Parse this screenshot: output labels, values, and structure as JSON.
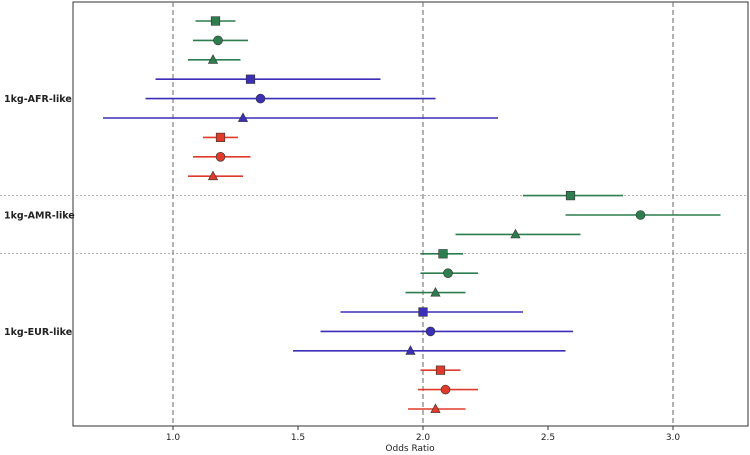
{
  "chart_data": {
    "type": "forest",
    "title": "",
    "xlabel": "Odds Ratio",
    "ylabel": "",
    "xlim": [
      0.6,
      3.3
    ],
    "xticks": [
      "1.0",
      "1.5",
      "2.0",
      "2.5",
      "3.0"
    ],
    "xtick_values": [
      1.0,
      1.5,
      2.0,
      2.5,
      3.0
    ],
    "vlines": [
      1.0,
      2.0,
      3.0
    ],
    "colors": {
      "green": "#2e7d4f",
      "blue": "#3b2fb8",
      "red": "#e03a2a"
    },
    "groups": [
      {
        "label": "1kg-AFR-like",
        "rows": [
          {
            "color": "green",
            "marker": "square",
            "or": 1.17,
            "lo": 1.09,
            "hi": 1.25
          },
          {
            "color": "green",
            "marker": "circle",
            "or": 1.18,
            "lo": 1.08,
            "hi": 1.3
          },
          {
            "color": "green",
            "marker": "triangle",
            "or": 1.16,
            "lo": 1.06,
            "hi": 1.27
          },
          {
            "color": "blue",
            "marker": "square",
            "or": 1.31,
            "lo": 0.93,
            "hi": 1.83
          },
          {
            "color": "blue",
            "marker": "circle",
            "or": 1.35,
            "lo": 0.89,
            "hi": 2.05
          },
          {
            "color": "blue",
            "marker": "triangle",
            "or": 1.28,
            "lo": 0.72,
            "hi": 2.3
          },
          {
            "color": "red",
            "marker": "square",
            "or": 1.19,
            "lo": 1.12,
            "hi": 1.26
          },
          {
            "color": "red",
            "marker": "circle",
            "or": 1.19,
            "lo": 1.08,
            "hi": 1.31
          },
          {
            "color": "red",
            "marker": "triangle",
            "or": 1.16,
            "lo": 1.06,
            "hi": 1.28
          }
        ]
      },
      {
        "label": "1kg-AMR-like",
        "rows": [
          {
            "color": "green",
            "marker": "square",
            "or": 2.59,
            "lo": 2.4,
            "hi": 2.8
          },
          {
            "color": "green",
            "marker": "circle",
            "or": 2.87,
            "lo": 2.57,
            "hi": 3.19
          },
          {
            "color": "green",
            "marker": "triangle",
            "or": 2.37,
            "lo": 2.13,
            "hi": 2.63
          }
        ]
      },
      {
        "label": "1kg-EUR-like",
        "rows": [
          {
            "color": "green",
            "marker": "square",
            "or": 2.08,
            "lo": 1.99,
            "hi": 2.16
          },
          {
            "color": "green",
            "marker": "circle",
            "or": 2.1,
            "lo": 1.99,
            "hi": 2.22
          },
          {
            "color": "green",
            "marker": "triangle",
            "or": 2.05,
            "lo": 1.93,
            "hi": 2.17
          },
          {
            "color": "blue",
            "marker": "square",
            "or": 2.0,
            "lo": 1.67,
            "hi": 2.4
          },
          {
            "color": "blue",
            "marker": "circle",
            "or": 2.03,
            "lo": 1.59,
            "hi": 2.6
          },
          {
            "color": "blue",
            "marker": "triangle",
            "or": 1.95,
            "lo": 1.48,
            "hi": 2.57
          },
          {
            "color": "red",
            "marker": "square",
            "or": 2.07,
            "lo": 1.99,
            "hi": 2.15
          },
          {
            "color": "red",
            "marker": "circle",
            "or": 2.09,
            "lo": 1.98,
            "hi": 2.22
          },
          {
            "color": "red",
            "marker": "triangle",
            "or": 2.05,
            "lo": 1.94,
            "hi": 2.17
          }
        ]
      }
    ]
  }
}
